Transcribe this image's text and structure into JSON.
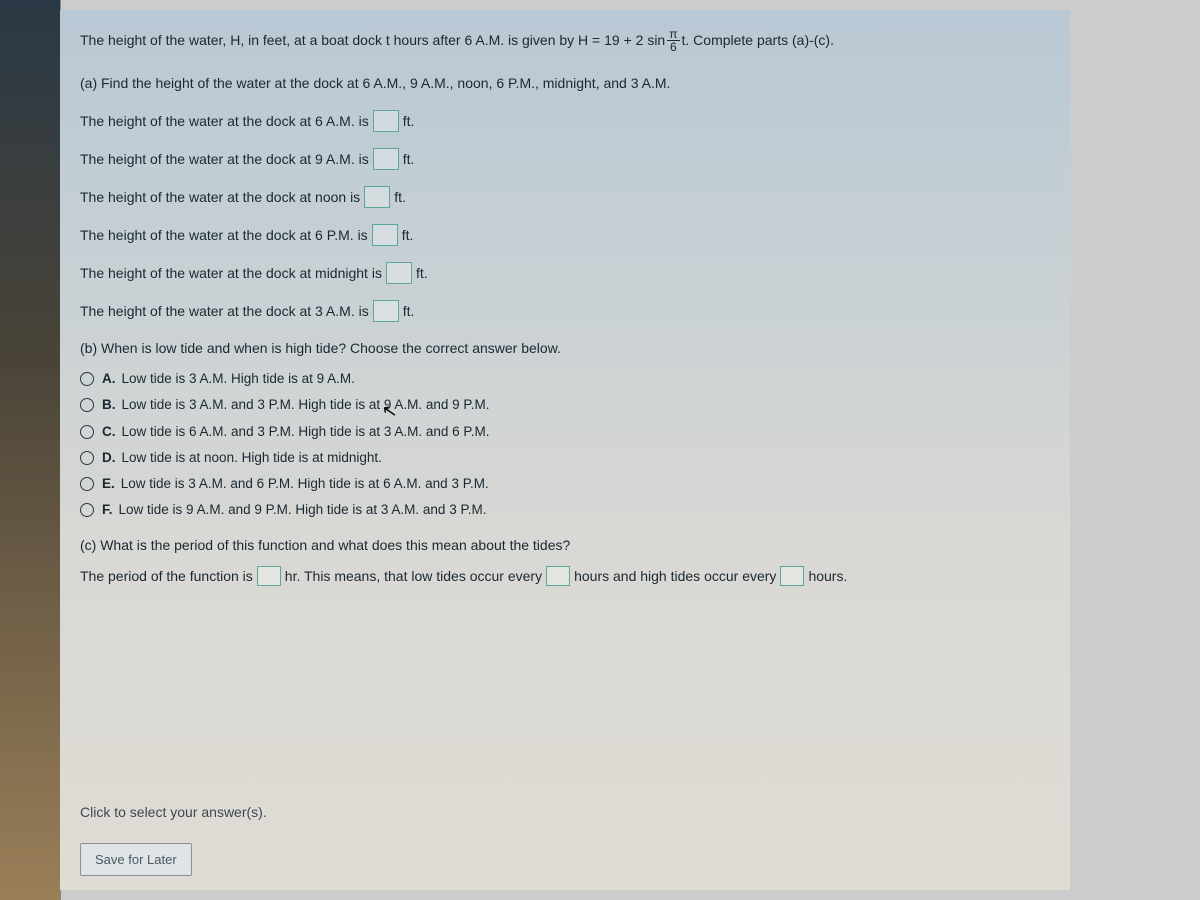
{
  "intro": {
    "pre": "The height of the water, H, in feet, at a boat dock t hours after 6 A.M. is given by H = 19 + 2 sin ",
    "frac_num": "π",
    "frac_den": "6",
    "post": "t. Complete parts (a)-(c)."
  },
  "part_a": {
    "label": "(a) Find the height of the water at the dock at 6 A.M., 9 A.M., noon, 6 P.M., midnight, and 3 A.M.",
    "lines": [
      {
        "pre": "The height of the water at the dock at 6 A.M. is",
        "post": "ft."
      },
      {
        "pre": "The height of the water at the dock at 9 A.M. is",
        "post": "ft."
      },
      {
        "pre": "The height of the water at the dock at noon is",
        "post": "ft."
      },
      {
        "pre": "The height of the water at the dock at 6 P.M. is",
        "post": "ft."
      },
      {
        "pre": "The height of the water at the dock at midnight is",
        "post": "ft."
      },
      {
        "pre": "The height of the water at the dock at 3 A.M. is",
        "post": "ft."
      }
    ]
  },
  "part_b": {
    "label": "(b) When is low tide and when is high tide? Choose the correct answer below.",
    "options": [
      {
        "letter": "A.",
        "text": "Low tide is 3 A.M. High tide is at 9 A.M."
      },
      {
        "letter": "B.",
        "text": "Low tide is 3 A.M. and 3 P.M. High tide is at 9 A.M. and 9 P.M."
      },
      {
        "letter": "C.",
        "text": "Low tide is 6 A.M. and 3 P.M. High tide is at 3 A.M. and 6 P.M."
      },
      {
        "letter": "D.",
        "text": "Low tide is at noon. High tide is at midnight."
      },
      {
        "letter": "E.",
        "text": "Low tide is 3 A.M. and 6 P.M. High tide is at 6 A.M. and 3 P.M."
      },
      {
        "letter": "F.",
        "text": "Low tide is 9 A.M. and 9 P.M. High tide is at 3 A.M. and 3 P.M."
      }
    ]
  },
  "part_c": {
    "label": "(c) What is the period of this function and what does this mean about the tides?",
    "seg1": "The period of the function is",
    "seg2": "hr. This means, that low tides occur every",
    "seg3": "hours and high tides occur every",
    "seg4": "hours."
  },
  "footer": {
    "prompt": "Click to select your answer(s).",
    "save": "Save for Later"
  }
}
